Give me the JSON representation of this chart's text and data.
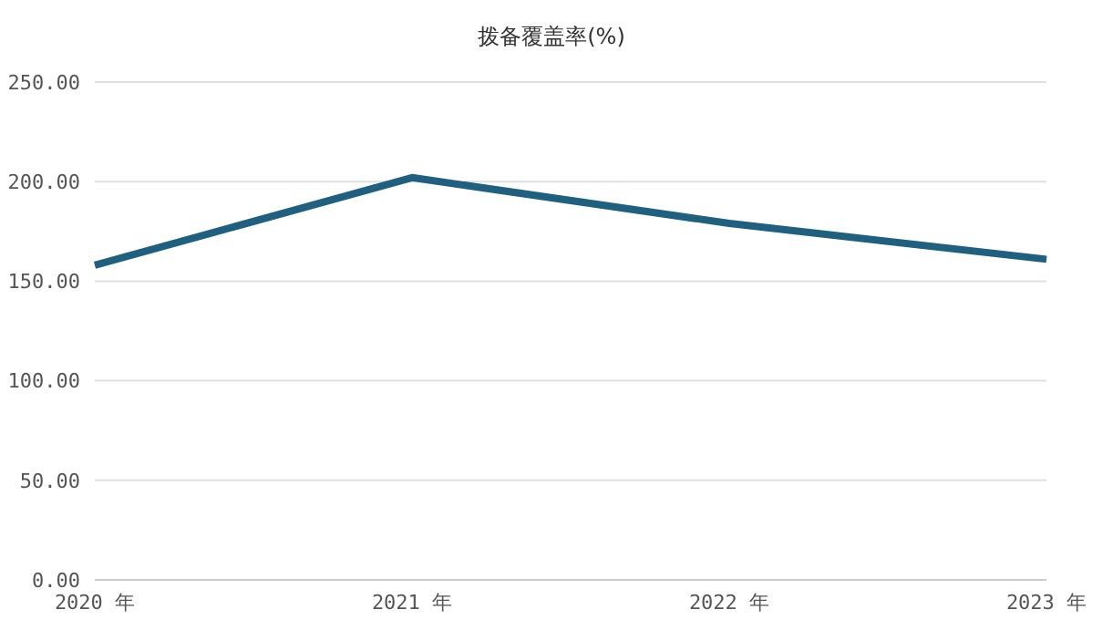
{
  "chart_data": {
    "type": "line",
    "title": "拨备覆盖率(%)",
    "categories": [
      "2020 年",
      "2021 年",
      "2022 年",
      "2023 年"
    ],
    "series": [
      {
        "color": "#1f5f80",
        "values": [
          158,
          202,
          179,
          161
        ]
      }
    ],
    "ylim": [
      0,
      250
    ],
    "yticks": [
      {
        "value": 0,
        "label": "0.00"
      },
      {
        "value": 50,
        "label": "50.00"
      },
      {
        "value": 100,
        "label": "100.00"
      },
      {
        "value": 150,
        "label": "150.00"
      },
      {
        "value": 200,
        "label": "200.00"
      },
      {
        "value": 250,
        "label": "250.00"
      }
    ],
    "grid": "y",
    "marker": "none"
  }
}
